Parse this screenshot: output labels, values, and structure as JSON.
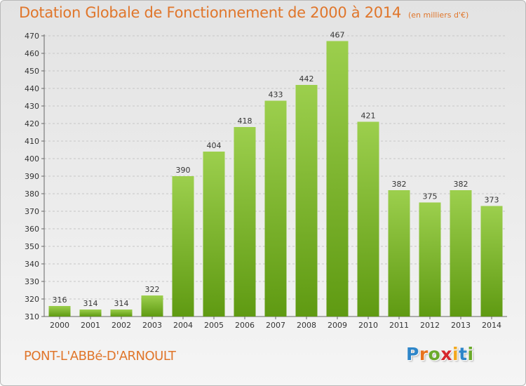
{
  "header": {
    "title": "Dotation Globale de Fonctionnement de 2000 à 2014",
    "subtitle": "(en milliers d'€)"
  },
  "footer": {
    "commune": "PONT-L'ABBé-D'ARNOULT",
    "logo_letters": [
      "P",
      "r",
      "o",
      "x",
      "i",
      "t",
      "i"
    ]
  },
  "colors": {
    "accent": "#e0762b",
    "bar_top": "#9ccf4d",
    "bar_bottom": "#5f9a12",
    "logo": [
      "#2e86c9",
      "#e8731e",
      "#6aaa2a",
      "#d6262d",
      "#f2a81d",
      "#2e86c9",
      "#6aaa2a"
    ]
  },
  "chart_data": {
    "type": "bar",
    "categories": [
      "2000",
      "2001",
      "2002",
      "2003",
      "2004",
      "2005",
      "2006",
      "2007",
      "2008",
      "2009",
      "2010",
      "2011",
      "2012",
      "2013",
      "2014"
    ],
    "values": [
      316,
      314,
      314,
      322,
      390,
      404,
      418,
      433,
      442,
      467,
      421,
      382,
      375,
      382,
      373
    ],
    "title": "Dotation Globale de Fonctionnement de 2000 à 2014",
    "xlabel": "",
    "ylabel": "",
    "ylim": [
      310,
      470
    ],
    "yticks": [
      310,
      320,
      330,
      340,
      350,
      360,
      370,
      380,
      390,
      400,
      410,
      420,
      430,
      440,
      450,
      460,
      470
    ],
    "grid": true,
    "legend": "none"
  }
}
